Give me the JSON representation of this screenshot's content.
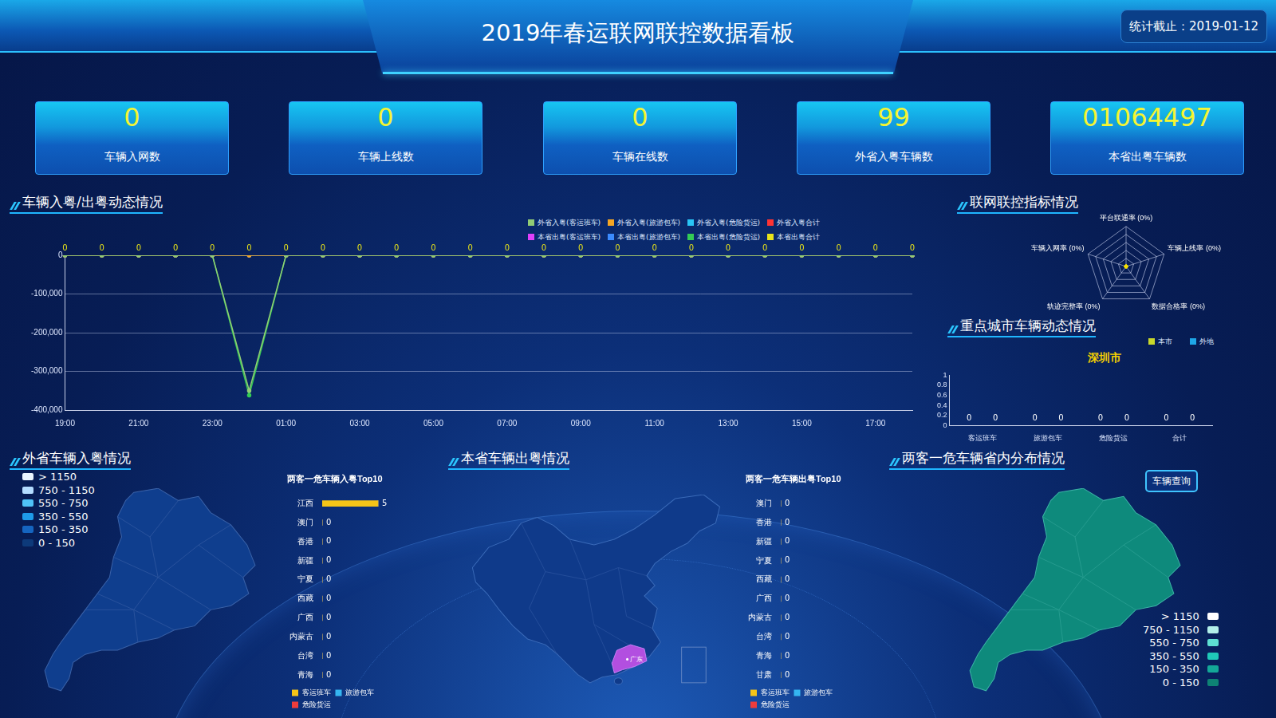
{
  "header": {
    "title": "2019年春运联网联控数据看板",
    "date": "统计截止：2019-01-12"
  },
  "kpis": [
    {
      "value": "0",
      "label": "车辆入网数"
    },
    {
      "value": "0",
      "label": "车辆上线数"
    },
    {
      "value": "0",
      "label": "车辆在线数"
    },
    {
      "value": "99",
      "label": "外省入粤车辆数"
    },
    {
      "value": "01064497",
      "label": "本省出粤车辆数"
    }
  ],
  "chart_data": [
    {
      "type": "line",
      "title": "车辆入粤/出粤动态情况",
      "categories": [
        "19:00",
        null,
        "21:00",
        null,
        "23:00",
        null,
        "01:00",
        null,
        "03:00",
        null,
        "05:00",
        null,
        "07:00",
        null,
        "09:00",
        null,
        "11:00",
        null,
        "13:00",
        null,
        "15:00",
        null,
        "17:00",
        null
      ],
      "series": [
        {
          "name": "外省入粤(客运班车)",
          "color": "#91cc75",
          "values": [
            0,
            0,
            0,
            0,
            0,
            -350000,
            0,
            0,
            0,
            0,
            0,
            0,
            0,
            0,
            0,
            0,
            0,
            0,
            0,
            0,
            0,
            0,
            0,
            0
          ]
        },
        {
          "name": "外省入粤(旅游包车)",
          "color": "#f5a623",
          "values": [
            0,
            0,
            0,
            0,
            0,
            0,
            0,
            0,
            0,
            0,
            0,
            0,
            0,
            0,
            0,
            0,
            0,
            0,
            0,
            0,
            0,
            0,
            0,
            0
          ]
        },
        {
          "name": "外省入粤(危险货运)",
          "color": "#29c5f6",
          "values": [
            0,
            0,
            0,
            0,
            0,
            0,
            0,
            0,
            0,
            0,
            0,
            0,
            0,
            0,
            0,
            0,
            0,
            0,
            0,
            0,
            0,
            0,
            0,
            0
          ]
        },
        {
          "name": "外省入粤合计",
          "color": "#ff3333",
          "values": [
            0,
            0,
            0,
            0,
            0,
            0,
            0,
            0,
            0,
            0,
            0,
            0,
            0,
            0,
            0,
            0,
            0,
            0,
            0,
            0,
            0,
            0,
            0,
            0
          ]
        },
        {
          "name": "本省出粤(客运班车)",
          "color": "#e040fb",
          "values": [
            0,
            0,
            0,
            0,
            0,
            0,
            0,
            0,
            0,
            0,
            0,
            0,
            0,
            0,
            0,
            0,
            0,
            0,
            0,
            0,
            0,
            0,
            0,
            0
          ]
        },
        {
          "name": "本省出粤(旅游包车)",
          "color": "#3b8bff",
          "values": [
            0,
            0,
            0,
            0,
            0,
            0,
            0,
            0,
            0,
            0,
            0,
            0,
            0,
            0,
            0,
            0,
            0,
            0,
            0,
            0,
            0,
            0,
            0,
            0
          ]
        },
        {
          "name": "本省出粤(危险货运)",
          "color": "#33cc55",
          "values": [
            0,
            0,
            0,
            0,
            0,
            -362000,
            0,
            0,
            0,
            0,
            0,
            0,
            0,
            0,
            0,
            0,
            0,
            0,
            0,
            0,
            0,
            0,
            0,
            0
          ]
        },
        {
          "name": "本省出粤合计",
          "color": "#e6e21a",
          "values": [
            0,
            0,
            0,
            0,
            0,
            0,
            0,
            0,
            0,
            0,
            0,
            0,
            0,
            0,
            0,
            0,
            0,
            0,
            0,
            0,
            0,
            0,
            0,
            0
          ],
          "data_labels": true
        }
      ],
      "ylim": [
        -400000,
        0
      ],
      "yticks": [
        {
          "value": -400000,
          "label": "-400,000"
        },
        {
          "value": -300000,
          "label": "-300,000"
        },
        {
          "value": -200000,
          "label": "-200,000"
        },
        {
          "value": -100000,
          "label": "-100,000"
        },
        0
      ],
      "grid": true,
      "legend": "top"
    },
    {
      "type": "radar",
      "title": "联网联控指标情况",
      "categories": [
        "平台联通率 (0%)",
        "车辆上线率 (0%)",
        "数据合格率 (0%)",
        "轨迹完整率 (0%)",
        "车辆入网率 (0%)"
      ],
      "values": [
        0,
        0,
        0,
        0,
        0
      ],
      "color": "#f5e000",
      "ylim": [
        0,
        100
      ],
      "yticks": [
        0,
        20,
        40,
        60,
        80,
        100
      ],
      "tick_labels": false,
      "grid": true
    },
    {
      "type": "bar",
      "title": "重点城市车辆动态情况",
      "subtitle": "深圳市",
      "categories": [
        "客运班车",
        "旅游包车",
        "危险货运",
        "合计"
      ],
      "series": [
        {
          "name": "本市",
          "color": "#c9d82a",
          "values": [
            0,
            0,
            0,
            0
          ]
        },
        {
          "name": "外地",
          "color": "#1ea7e8",
          "values": [
            0,
            0,
            0,
            0
          ]
        }
      ],
      "ylim": [
        0,
        1
      ],
      "yticks": [
        0,
        0.2,
        0.4,
        0.6,
        0.8,
        1
      ],
      "data_labels": true,
      "legend": "top",
      "grid": false
    },
    {
      "type": "bar",
      "title": "两客一危车辆入粤Top10",
      "orientation": "horizontal",
      "stacked": true,
      "categories": [
        "江西",
        "澳门",
        "香港",
        "新疆",
        "宁夏",
        "西藏",
        "广西",
        "内蒙古",
        "台湾",
        "青海"
      ],
      "series": [
        {
          "name": "客运班车",
          "color": "#f5c518",
          "values": [
            5,
            0,
            0,
            0,
            0,
            0,
            0,
            0,
            0,
            0
          ],
          "data_labels": true
        },
        {
          "name": "旅游包车",
          "color": "#35b6f0",
          "values": [
            0,
            0,
            0,
            0,
            0,
            0,
            0,
            0,
            0,
            0
          ]
        },
        {
          "name": "危险货运",
          "color": "#f03c3c",
          "values": [
            0,
            0,
            0,
            0,
            0,
            0,
            0,
            0,
            0,
            0
          ]
        }
      ],
      "xlim": [
        0,
        7
      ],
      "tick_labels": "y",
      "legend": "bottom",
      "grid": false
    },
    {
      "type": "bar",
      "title": "两客一危车辆出粤Top10",
      "orientation": "horizontal",
      "stacked": true,
      "categories": [
        "澳门",
        "香港",
        "新疆",
        "宁夏",
        "西藏",
        "广西",
        "内蒙古",
        "台湾",
        "青海",
        "甘肃"
      ],
      "series": [
        {
          "name": "客运班车",
          "color": "#f5c518",
          "values": [
            0,
            0,
            0,
            0,
            0,
            0,
            0,
            0,
            0,
            0
          ],
          "data_labels": true
        },
        {
          "name": "旅游包车",
          "color": "#35b6f0",
          "values": [
            0,
            0,
            0,
            0,
            0,
            0,
            0,
            0,
            0,
            0
          ]
        },
        {
          "name": "危险货运",
          "color": "#f03c3c",
          "values": [
            0,
            0,
            0,
            0,
            0,
            0,
            0,
            0,
            0,
            0
          ]
        }
      ],
      "xlim": [
        0,
        7
      ],
      "tick_labels": "y",
      "legend": "bottom",
      "grid": false
    }
  ],
  "maps": [
    {
      "title": "外省车辆入粤情况",
      "legend": [
        {
          "label": "> 1150",
          "color": "#eaf6ff"
        },
        {
          "label": "750 - 1150",
          "color": "#b3dcff"
        },
        {
          "label": "550 - 750",
          "color": "#4fc3f7"
        },
        {
          "label": "350 - 550",
          "color": "#1e9be8"
        },
        {
          "label": "150 - 350",
          "color": "#1565c0"
        },
        {
          "label": "0 - 150",
          "color": "#0d3a7a"
        }
      ]
    },
    {
      "title": "本省车辆出粤情况",
      "label": "广东"
    },
    {
      "title": "两客一危车辆省内分布情况",
      "button": "车辆查询",
      "legend": [
        {
          "label": "> 1150",
          "color": "#ffffff"
        },
        {
          "label": "750 - 1150",
          "color": "#b2efe9"
        },
        {
          "label": "550 - 750",
          "color": "#5ee0d2"
        },
        {
          "label": "350 - 550",
          "color": "#1fc8b8"
        },
        {
          "label": "150 - 350",
          "color": "#13a898"
        },
        {
          "label": "0 - 150",
          "color": "#0e8274"
        }
      ]
    }
  ]
}
